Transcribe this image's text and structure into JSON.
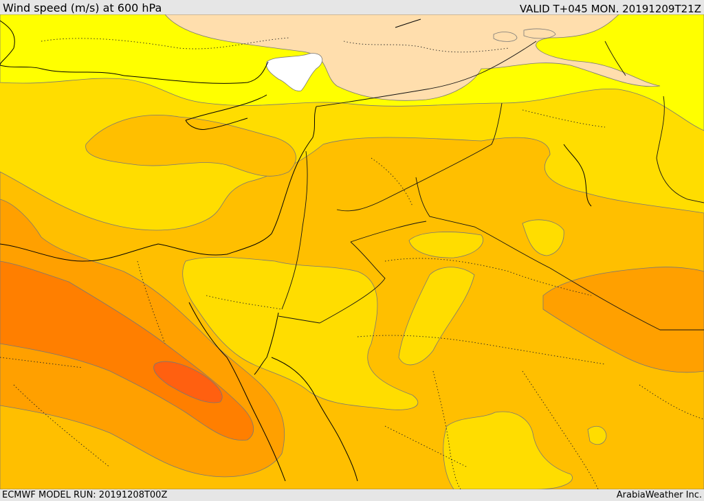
{
  "header": {
    "title": "Wind speed (m/s) at 600 hPa",
    "valid_time": "VALID T+045 MON. 20191209T21Z"
  },
  "footer": {
    "model_run": "ECMWF MODEL RUN: 20191208T00Z",
    "credit": "ArabiaWeather Inc."
  },
  "map": {
    "variable": "wind speed",
    "pressure_level_hpa": 600,
    "shading_colors": {
      "calm": "#ffffff",
      "light": "#ffdead",
      "low": "#ffff00",
      "moderate": "#ffdd00",
      "elevated": "#ffbf00",
      "high": "#ffa000",
      "very_high": "#ff7f00",
      "max": "#ff6010"
    },
    "overlays": [
      "coastlines",
      "country-borders",
      "dotted-admin-boundaries",
      "wind-speed-contours"
    ]
  }
}
